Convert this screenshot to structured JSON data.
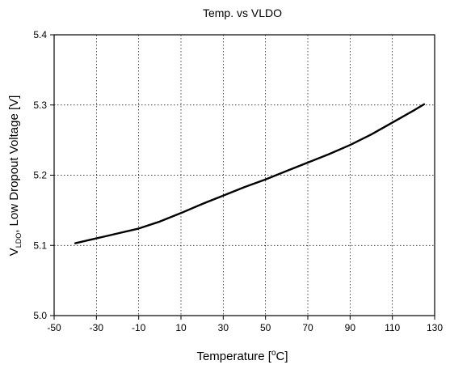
{
  "chart_data": {
    "type": "line",
    "title": "Temp. vs VLDO",
    "xlabel": "Temperature [°C]",
    "ylabel": "V_LDO, Low Dropout Voltage [V]",
    "xlim": [
      -50,
      130
    ],
    "ylim": [
      5.0,
      5.4
    ],
    "x_ticks": [
      -50,
      -30,
      -10,
      10,
      30,
      50,
      70,
      90,
      110,
      130
    ],
    "y_ticks": [
      5.0,
      5.1,
      5.2,
      5.3,
      5.4
    ],
    "y_tick_labels": [
      "5.0",
      "5.1",
      "5.2",
      "5.3",
      "5.4"
    ],
    "grid": true,
    "grid_style": "dotted",
    "series": [
      {
        "color": "#000000",
        "x": [
          -40,
          -30,
          -20,
          -10,
          0,
          10,
          20,
          30,
          40,
          50,
          60,
          70,
          80,
          90,
          100,
          110,
          120,
          125
        ],
        "y": [
          5.103,
          5.11,
          5.117,
          5.124,
          5.134,
          5.146,
          5.159,
          5.171,
          5.183,
          5.194,
          5.206,
          5.218,
          5.23,
          5.243,
          5.258,
          5.275,
          5.292,
          5.301
        ]
      }
    ]
  }
}
